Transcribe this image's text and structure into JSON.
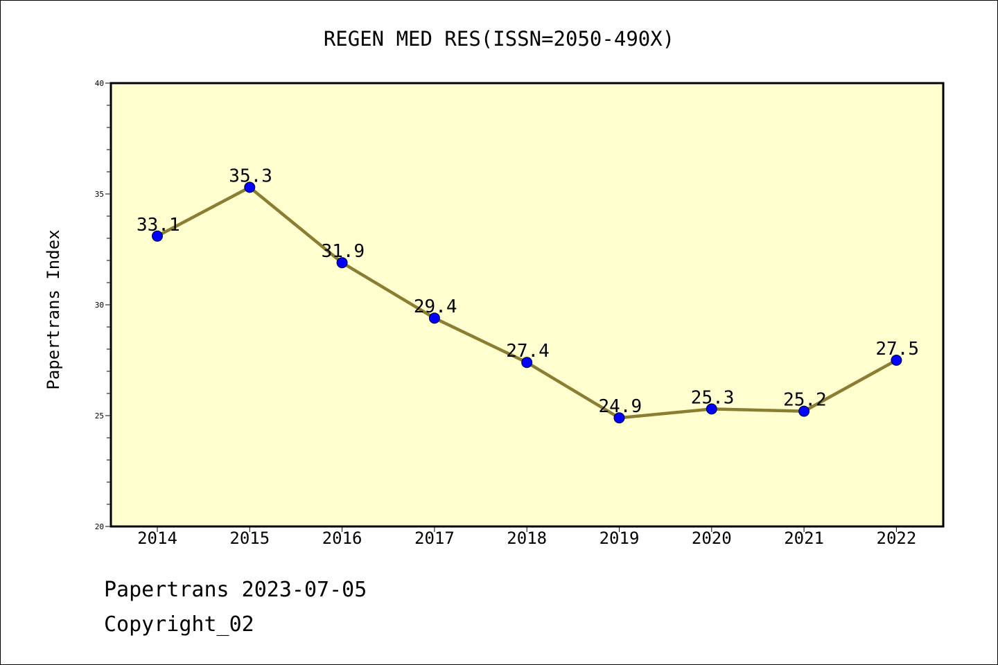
{
  "chart_data": {
    "type": "line",
    "title": "REGEN MED RES(ISSN=2050-490X)",
    "xlabel": "",
    "ylabel": "Papertrans Index",
    "categories": [
      "2014",
      "2015",
      "2016",
      "2017",
      "2018",
      "2019",
      "2020",
      "2021",
      "2022"
    ],
    "series": [
      {
        "values": [
          33.1,
          35.3,
          31.9,
          29.4,
          27.4,
          24.9,
          25.3,
          25.2,
          27.5
        ],
        "labels": [
          "33.1",
          "35.3",
          "31.9",
          "29.4",
          "27.4",
          "24.9",
          "25.3",
          "25.2",
          "27.5"
        ]
      }
    ],
    "ylim": [
      20,
      40
    ],
    "yticks": [
      "20",
      "25",
      "30",
      "35",
      "40"
    ],
    "grid": false,
    "colors": {
      "plot_background": "#ffffd0",
      "line": "#8b7d32",
      "marker": "#0000ff"
    }
  },
  "footer": {
    "line1": "Papertrans 2023-07-05",
    "line2": "Copyright_02"
  }
}
